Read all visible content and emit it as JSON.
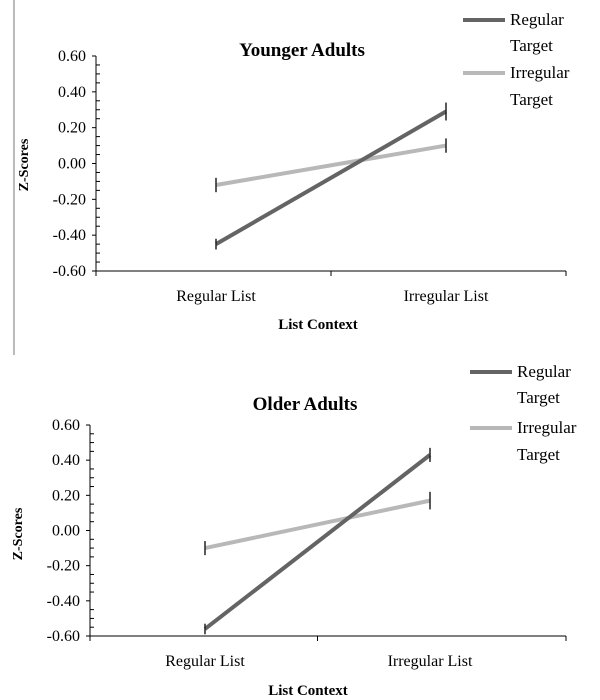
{
  "chart_data": [
    {
      "type": "line",
      "title": "Younger Adults",
      "xlabel": "List Context",
      "ylabel": "Z-Scores",
      "categories": [
        "Regular List",
        "Irregular List"
      ],
      "ylim": [
        -0.6,
        0.6
      ],
      "yticks": [
        "0.60",
        "0.40",
        "0.20",
        "0.00",
        "-0.20",
        "-0.40",
        "-0.60"
      ],
      "grid": false,
      "legend_position": "top-right",
      "series": [
        {
          "name": "Regular Target",
          "values": [
            -0.45,
            0.29
          ],
          "error": [
            0.03,
            0.05
          ],
          "color": "#646464"
        },
        {
          "name": "Irregular Target",
          "values": [
            -0.12,
            0.1
          ],
          "error": [
            0.04,
            0.04
          ],
          "color": "#b8b8b8"
        }
      ]
    },
    {
      "type": "line",
      "title": "Older Adults",
      "xlabel": "List Context",
      "ylabel": "Z-Scores",
      "categories": [
        "Regular List",
        "Irregular List"
      ],
      "ylim": [
        -0.6,
        0.6
      ],
      "yticks": [
        "0.60",
        "0.40",
        "0.20",
        "0.00",
        "-0.20",
        "-0.40",
        "-0.60"
      ],
      "grid": false,
      "legend_position": "top-right",
      "series": [
        {
          "name": "Regular Target",
          "values": [
            -0.56,
            0.43
          ],
          "error": [
            0.03,
            0.04
          ],
          "color": "#646464"
        },
        {
          "name": "Irregular Target",
          "values": [
            -0.1,
            0.17
          ],
          "error": [
            0.04,
            0.05
          ],
          "color": "#b8b8b8"
        }
      ]
    }
  ]
}
